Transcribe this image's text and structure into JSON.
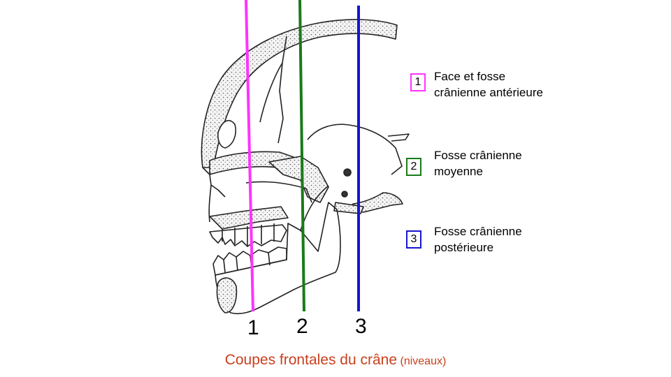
{
  "levels": [
    {
      "num": "1",
      "color": "#ff33ff",
      "line1": "Face et fosse",
      "line2": "crânienne  antérieure"
    },
    {
      "num": "2",
      "color": "#1a7a1a",
      "line1": "Fosse crânienne",
      "line2": "moyenne"
    },
    {
      "num": "3",
      "color": "#1515d0",
      "line1": "Fosse crânienne",
      "line2": "postérieure"
    }
  ],
  "caption": {
    "main": "Coupes frontales du crâne",
    "small": "(niveaux)"
  },
  "colors": {
    "caption": "#c8401e",
    "outline": "#222222"
  }
}
